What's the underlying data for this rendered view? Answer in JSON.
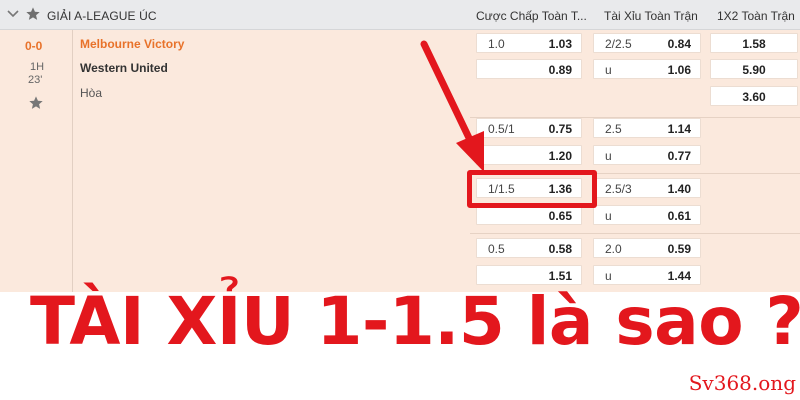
{
  "header": {
    "league": "GIẢI A-LEAGUE ÚC",
    "columns": [
      "Cược Chấp Toàn T...",
      "Tài Xỉu Toàn Trận",
      "1X2 Toàn Trận"
    ]
  },
  "match": {
    "score": "0-0",
    "period": "1H",
    "minute": "23'",
    "home": "Melbourne Victory",
    "away": "Western United",
    "draw": "Hòa"
  },
  "groups": [
    {
      "handicap": [
        {
          "line": "1.0",
          "odds": "1.03"
        },
        {
          "line": "",
          "odds": "0.89"
        }
      ],
      "total": [
        {
          "line": "2/2.5",
          "odds": "0.84"
        },
        {
          "line": "u",
          "odds": "1.06"
        }
      ],
      "x12": [
        "1.58",
        "5.90",
        "3.60"
      ]
    },
    {
      "handicap": [
        {
          "line": "0.5/1",
          "odds": "0.75"
        },
        {
          "line": "",
          "odds": "1.20"
        }
      ],
      "total": [
        {
          "line": "2.5",
          "odds": "1.14"
        },
        {
          "line": "u",
          "odds": "0.77"
        }
      ]
    },
    {
      "handicap": [
        {
          "line": "1/1.5",
          "odds": "1.36"
        },
        {
          "line": "",
          "odds": "0.65"
        }
      ],
      "total": [
        {
          "line": "2.5/3",
          "odds": "1.40"
        },
        {
          "line": "u",
          "odds": "0.61"
        }
      ]
    },
    {
      "handicap": [
        {
          "line": "0.5",
          "odds": "0.58"
        },
        {
          "line": "",
          "odds": "1.51"
        }
      ],
      "total": [
        {
          "line": "2.0",
          "odds": "0.59"
        },
        {
          "line": "u",
          "odds": "1.44"
        }
      ]
    }
  ],
  "caption": "TÀI XỈU 1-1.5 là sao ?",
  "watermark": "Sv368.ong",
  "colors": {
    "accent": "#e8722a",
    "highlight": "#e3171d",
    "row_bg": "#fbe9dd",
    "header_bg": "#e9eaec"
  },
  "icons": [
    "chevron-down-icon",
    "star-icon",
    "arrow-icon"
  ]
}
